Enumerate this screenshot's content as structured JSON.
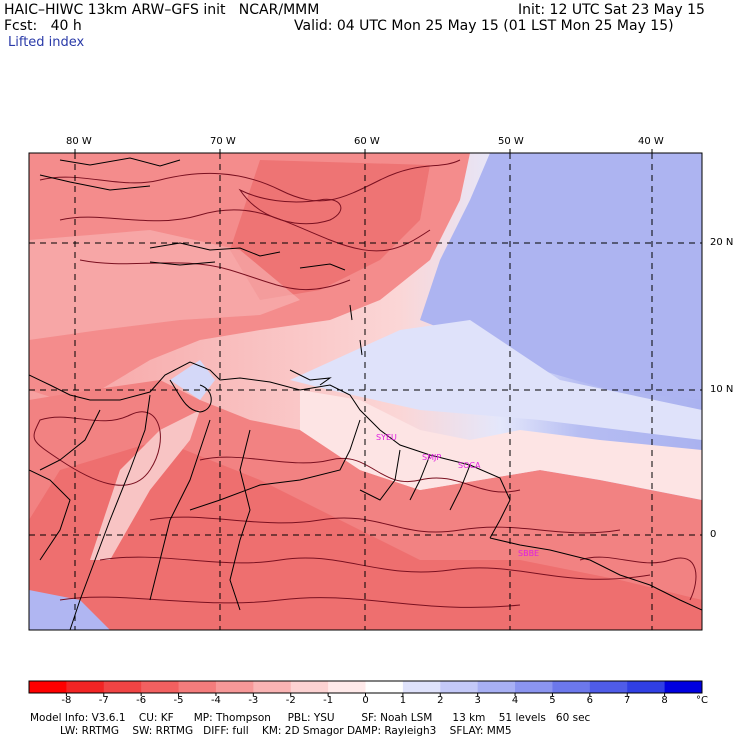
{
  "header": {
    "model_line": "HAIC–HIWC 13km ARW–GFS init   NCAR/MMM",
    "init_line": "Init: 12 UTC Sat 23 May 15",
    "fcst_line": "Fcst:   40 h",
    "valid_line": "Valid: 04 UTC Mon 25 May 15 (01 LST Mon 25 May 15)",
    "field_name": "Lifted index"
  },
  "map": {
    "lon_labels": [
      "80 W",
      "70 W",
      "60 W",
      "50 W",
      "40 W"
    ],
    "lat_labels": [
      "20 N",
      "10 N",
      "0"
    ],
    "stations": [
      "SYEU",
      "SMJP",
      "SOCA",
      "SBBE"
    ],
    "colors": {
      "strong_unstable": "#e84040",
      "unstable": "#f48888",
      "weak_unstable": "#fac8c8",
      "neutral": "#ffffff",
      "weak_stable": "#d8dcf8",
      "stable": "#a8b0f0",
      "border": "#000000",
      "contour": "#7a1020",
      "station_color": "#e020e0"
    }
  },
  "colorbar": {
    "ticks": [
      "-8",
      "-7",
      "-6",
      "-5",
      "-4",
      "-3",
      "-2",
      "-1",
      "0",
      "1",
      "2",
      "3",
      "4",
      "5",
      "6",
      "7",
      "8"
    ],
    "unit": "°C",
    "colors": [
      "#ff0000",
      "#f22424",
      "#f04444",
      "#f26060",
      "#f47c7c",
      "#f79898",
      "#fab4b4",
      "#fcd2d2",
      "#ffeaea",
      "#ffffff",
      "#dfe2fb",
      "#c4c9f8",
      "#a8b0f4",
      "#8b95f0",
      "#6c78ec",
      "#4f5ce8",
      "#303fe4",
      "#0000e0"
    ]
  },
  "footer": {
    "line1": "Model Info: V3.6.1    CU: KF      MP: Thompson     PBL: YSU        SF: Noah LSM      13 km    51 levels   60 sec",
    "line2": "         LW: RRTMG    SW: RRTMG   DIFF: full    KM: 2D Smagor DAMP: Rayleigh3    SFLAY: MM5"
  }
}
